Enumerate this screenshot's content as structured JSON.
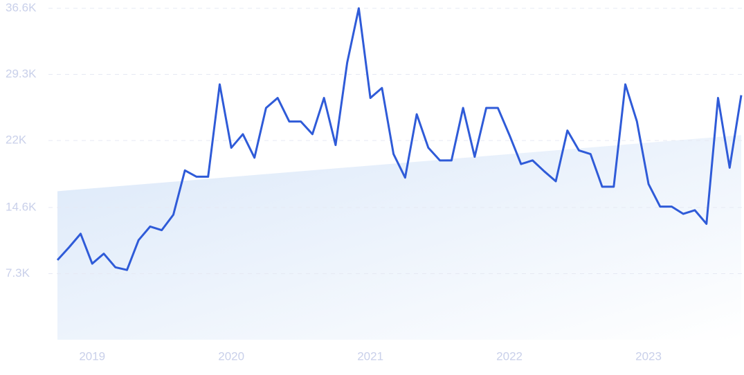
{
  "chart_data": {
    "type": "line",
    "categories": [
      null,
      null,
      null,
      "2019",
      null,
      null,
      null,
      null,
      null,
      null,
      null,
      null,
      null,
      null,
      null,
      "2020",
      null,
      null,
      null,
      null,
      null,
      null,
      null,
      null,
      null,
      null,
      null,
      "2021",
      null,
      null,
      null,
      null,
      null,
      null,
      null,
      null,
      null,
      null,
      null,
      "2022",
      null,
      null,
      null,
      null,
      null,
      null,
      null,
      null,
      null,
      null,
      null,
      "2023",
      null,
      null,
      null,
      null,
      null,
      null,
      null,
      null
    ],
    "series": [
      {
        "color": "#2f5bd8",
        "values": [
          8800,
          10200,
          11700,
          8400,
          9500,
          8000,
          7700,
          11000,
          12500,
          12100,
          13800,
          18700,
          18000,
          18000,
          28200,
          21200,
          22700,
          20100,
          25600,
          26700,
          24100,
          24100,
          22700,
          26700,
          21500,
          30600,
          36600,
          26700,
          27800,
          20500,
          17900,
          24900,
          21200,
          19800,
          19800,
          25600,
          20200,
          25600,
          25600,
          22600,
          19400,
          19800,
          18600,
          17500,
          23100,
          20900,
          20500,
          16900,
          16900,
          28200,
          24100,
          17200,
          14700,
          14700,
          13900,
          14300,
          12800,
          26700,
          19000,
          27000
        ]
      }
    ],
    "trend": {
      "values": [
        16400,
        22600
      ],
      "colors": [
        "#dbe8f9",
        "#ffffff"
      ]
    },
    "ylim": [
      0,
      36600
    ],
    "yticks": [
      {
        "value": 7300,
        "label": "7.3K"
      },
      {
        "value": 14600,
        "label": "14.6K"
      },
      {
        "value": 22000,
        "label": "22K"
      },
      {
        "value": 29300,
        "label": "29.3K"
      },
      {
        "value": 36600,
        "label": "36.6K"
      }
    ],
    "grid": true
  }
}
